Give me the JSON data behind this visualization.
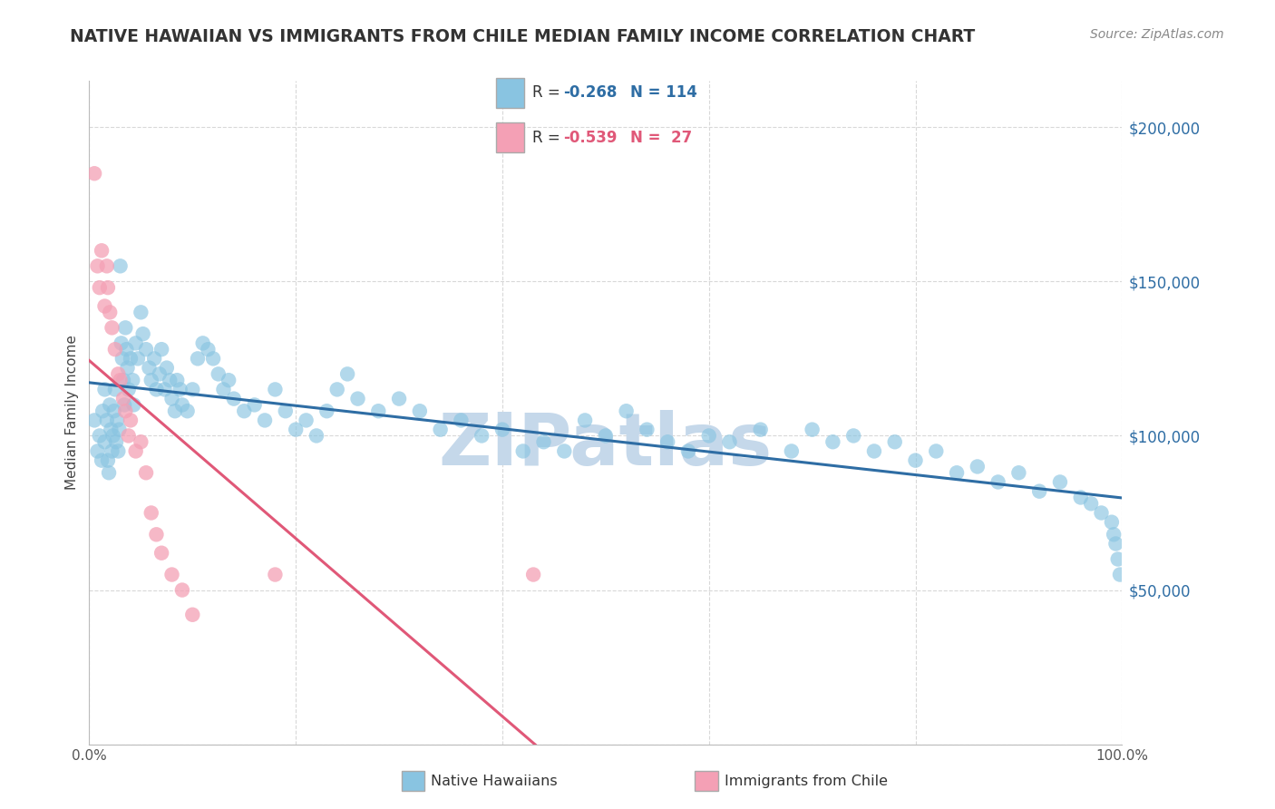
{
  "title": "NATIVE HAWAIIAN VS IMMIGRANTS FROM CHILE MEDIAN FAMILY INCOME CORRELATION CHART",
  "source": "Source: ZipAtlas.com",
  "ylabel": "Median Family Income",
  "y_ticks": [
    0,
    50000,
    100000,
    150000,
    200000
  ],
  "y_tick_labels": [
    "",
    "$50,000",
    "$100,000",
    "$150,000",
    "$200,000"
  ],
  "xlim": [
    0,
    1
  ],
  "ylim": [
    0,
    215000
  ],
  "blue_R": -0.268,
  "blue_N": 114,
  "pink_R": -0.539,
  "pink_N": 27,
  "blue_color": "#89c4e1",
  "pink_color": "#f4a0b5",
  "blue_line_color": "#2e6da4",
  "pink_line_color": "#e05878",
  "watermark": "ZIPatlas",
  "watermark_color": "#c5d8ea",
  "legend_label_blue": "Native Hawaiians",
  "legend_label_pink": "Immigrants from Chile",
  "background_color": "#ffffff",
  "grid_color": "#d8d8d8",
  "title_color": "#333333",
  "source_color": "#888888",
  "blue_x": [
    0.005,
    0.008,
    0.01,
    0.012,
    0.013,
    0.015,
    0.015,
    0.017,
    0.018,
    0.019,
    0.02,
    0.021,
    0.022,
    0.023,
    0.024,
    0.025,
    0.026,
    0.027,
    0.028,
    0.029,
    0.03,
    0.031,
    0.032,
    0.033,
    0.034,
    0.035,
    0.036,
    0.037,
    0.038,
    0.04,
    0.042,
    0.043,
    0.045,
    0.047,
    0.05,
    0.052,
    0.055,
    0.058,
    0.06,
    0.063,
    0.065,
    0.068,
    0.07,
    0.073,
    0.075,
    0.078,
    0.08,
    0.083,
    0.085,
    0.088,
    0.09,
    0.095,
    0.1,
    0.105,
    0.11,
    0.115,
    0.12,
    0.125,
    0.13,
    0.135,
    0.14,
    0.15,
    0.16,
    0.17,
    0.18,
    0.19,
    0.2,
    0.21,
    0.22,
    0.23,
    0.24,
    0.25,
    0.26,
    0.28,
    0.3,
    0.32,
    0.34,
    0.36,
    0.38,
    0.4,
    0.42,
    0.44,
    0.46,
    0.48,
    0.5,
    0.52,
    0.54,
    0.56,
    0.58,
    0.6,
    0.62,
    0.65,
    0.68,
    0.7,
    0.72,
    0.74,
    0.76,
    0.78,
    0.8,
    0.82,
    0.84,
    0.86,
    0.88,
    0.9,
    0.92,
    0.94,
    0.96,
    0.97,
    0.98,
    0.99,
    0.992,
    0.994,
    0.996,
    0.998
  ],
  "blue_y": [
    105000,
    95000,
    100000,
    92000,
    108000,
    115000,
    98000,
    105000,
    92000,
    88000,
    110000,
    102000,
    95000,
    100000,
    108000,
    115000,
    98000,
    105000,
    95000,
    102000,
    155000,
    130000,
    125000,
    118000,
    110000,
    135000,
    128000,
    122000,
    115000,
    125000,
    118000,
    110000,
    130000,
    125000,
    140000,
    133000,
    128000,
    122000,
    118000,
    125000,
    115000,
    120000,
    128000,
    115000,
    122000,
    118000,
    112000,
    108000,
    118000,
    115000,
    110000,
    108000,
    115000,
    125000,
    130000,
    128000,
    125000,
    120000,
    115000,
    118000,
    112000,
    108000,
    110000,
    105000,
    115000,
    108000,
    102000,
    105000,
    100000,
    108000,
    115000,
    120000,
    112000,
    108000,
    112000,
    108000,
    102000,
    105000,
    100000,
    102000,
    95000,
    98000,
    95000,
    105000,
    100000,
    108000,
    102000,
    98000,
    95000,
    100000,
    98000,
    102000,
    95000,
    102000,
    98000,
    100000,
    95000,
    98000,
    92000,
    95000,
    88000,
    90000,
    85000,
    88000,
    82000,
    85000,
    80000,
    78000,
    75000,
    72000,
    68000,
    65000,
    60000,
    55000
  ],
  "pink_x": [
    0.005,
    0.008,
    0.01,
    0.012,
    0.015,
    0.017,
    0.018,
    0.02,
    0.022,
    0.025,
    0.028,
    0.03,
    0.033,
    0.035,
    0.038,
    0.04,
    0.045,
    0.05,
    0.055,
    0.06,
    0.065,
    0.07,
    0.08,
    0.09,
    0.1,
    0.18,
    0.43
  ],
  "pink_y": [
    185000,
    155000,
    148000,
    160000,
    142000,
    155000,
    148000,
    140000,
    135000,
    128000,
    120000,
    118000,
    112000,
    108000,
    100000,
    105000,
    95000,
    98000,
    88000,
    75000,
    68000,
    62000,
    55000,
    50000,
    42000,
    55000,
    55000
  ],
  "pink_line_end_solid": 0.48,
  "pink_line_end_dashed": 1.0
}
